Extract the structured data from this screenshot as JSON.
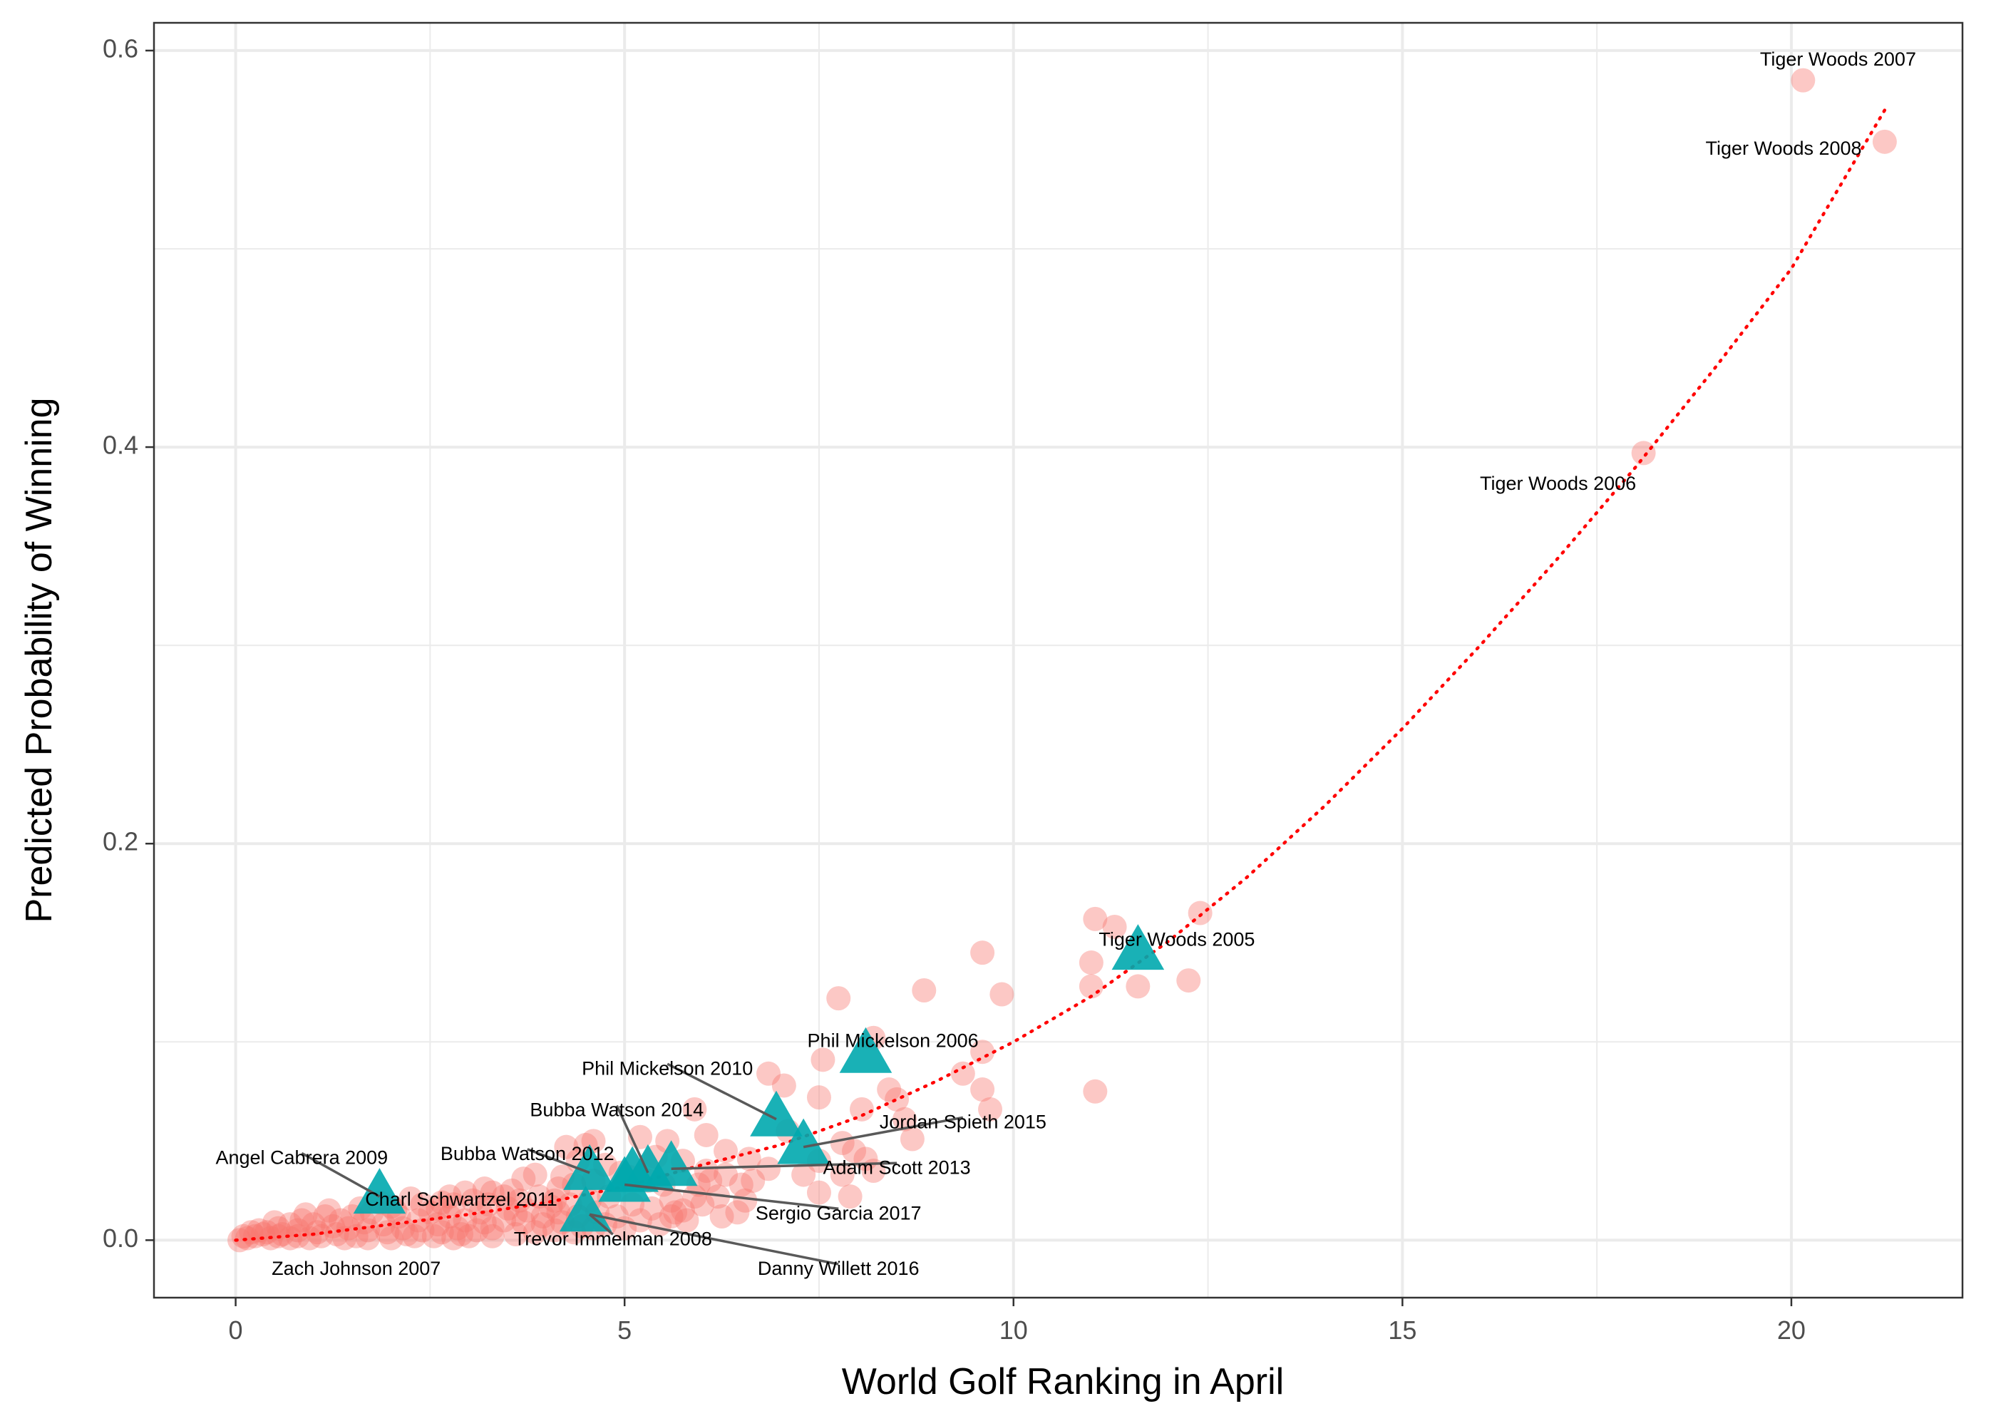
{
  "chart_data": {
    "type": "scatter",
    "title": "",
    "xlabel": "World Golf Ranking in April",
    "ylabel": "Predicted Probability of Winning",
    "xlim": [
      -1.05,
      22.2
    ],
    "ylim": [
      -0.029,
      0.614
    ],
    "x_ticks": [
      0,
      5,
      10,
      15,
      20
    ],
    "y_ticks": [
      0.0,
      0.2,
      0.4,
      0.6
    ],
    "y_tick_labels": [
      "0.0",
      "0.2",
      "0.4",
      "0.6"
    ],
    "grid": true,
    "legend": "none",
    "colors": {
      "field": "#F8766D",
      "winner": "#00A9AE",
      "trend": "#FF0000",
      "connector": "#595959",
      "grid": "#EBEBEB",
      "axis": "#333333"
    },
    "series": [
      {
        "marker": "circle",
        "points": [
          [
            20.15,
            0.585
          ],
          [
            21.2,
            0.554
          ],
          [
            18.1,
            0.397
          ],
          [
            11.05,
            0.162
          ],
          [
            11.3,
            0.158
          ],
          [
            12.4,
            0.165
          ],
          [
            11.0,
            0.14
          ],
          [
            11.0,
            0.128
          ],
          [
            11.6,
            0.128
          ],
          [
            12.25,
            0.131
          ],
          [
            11.05,
            0.075
          ],
          [
            9.6,
            0.145
          ],
          [
            7.75,
            0.122
          ],
          [
            8.85,
            0.126
          ],
          [
            9.85,
            0.124
          ],
          [
            7.55,
            0.091
          ],
          [
            8.2,
            0.102
          ],
          [
            9.6,
            0.095
          ],
          [
            9.35,
            0.084
          ],
          [
            9.6,
            0.076
          ],
          [
            9.7,
            0.066
          ],
          [
            7.05,
            0.078
          ],
          [
            6.85,
            0.084
          ],
          [
            7.5,
            0.072
          ],
          [
            8.05,
            0.066
          ],
          [
            8.4,
            0.076
          ],
          [
            8.5,
            0.071
          ],
          [
            8.6,
            0.061
          ],
          [
            8.7,
            0.051
          ],
          [
            5.9,
            0.066
          ],
          [
            6.05,
            0.053
          ],
          [
            7.1,
            0.055
          ],
          [
            7.8,
            0.049
          ],
          [
            7.95,
            0.045
          ],
          [
            8.1,
            0.041
          ],
          [
            8.2,
            0.035
          ],
          [
            7.5,
            0.04
          ],
          [
            7.8,
            0.033
          ],
          [
            7.3,
            0.033
          ],
          [
            7.9,
            0.022
          ],
          [
            7.5,
            0.024
          ],
          [
            6.85,
            0.036
          ],
          [
            6.6,
            0.041
          ],
          [
            6.3,
            0.045
          ],
          [
            6.05,
            0.035
          ],
          [
            6.5,
            0.028
          ],
          [
            6.55,
            0.02
          ],
          [
            6.45,
            0.014
          ],
          [
            6.2,
            0.022
          ],
          [
            6.3,
            0.033
          ],
          [
            5.95,
            0.028
          ],
          [
            5.75,
            0.04
          ],
          [
            5.55,
            0.05
          ],
          [
            5.2,
            0.052
          ],
          [
            5.4,
            0.042
          ],
          [
            5.6,
            0.02
          ],
          [
            5.75,
            0.015
          ],
          [
            5.9,
            0.022
          ],
          [
            6.1,
            0.03
          ],
          [
            6.65,
            0.03
          ],
          [
            4.6,
            0.05
          ],
          [
            4.5,
            0.048
          ],
          [
            4.25,
            0.047
          ],
          [
            4.4,
            0.04
          ],
          [
            4.75,
            0.038
          ],
          [
            4.95,
            0.034
          ],
          [
            5.05,
            0.032
          ],
          [
            5.3,
            0.03
          ],
          [
            5.5,
            0.028
          ],
          [
            4.6,
            0.03
          ],
          [
            4.35,
            0.028
          ],
          [
            4.15,
            0.026
          ],
          [
            4.2,
            0.032
          ],
          [
            3.85,
            0.033
          ],
          [
            3.7,
            0.031
          ],
          [
            3.55,
            0.025
          ],
          [
            3.3,
            0.024
          ],
          [
            3.2,
            0.026
          ],
          [
            3.45,
            0.022
          ],
          [
            3.65,
            0.02
          ],
          [
            3.9,
            0.022
          ],
          [
            4.1,
            0.02
          ],
          [
            4.3,
            0.018
          ],
          [
            4.55,
            0.02
          ],
          [
            4.8,
            0.022
          ],
          [
            5.1,
            0.018
          ],
          [
            5.35,
            0.016
          ],
          [
            5.6,
            0.012
          ],
          [
            5.8,
            0.01
          ],
          [
            4.9,
            0.012
          ],
          [
            4.65,
            0.014
          ],
          [
            4.4,
            0.012
          ],
          [
            4.15,
            0.014
          ],
          [
            3.95,
            0.012
          ],
          [
            3.75,
            0.015
          ],
          [
            3.5,
            0.016
          ],
          [
            3.25,
            0.018
          ],
          [
            3.05,
            0.02
          ],
          [
            2.95,
            0.024
          ],
          [
            2.75,
            0.022
          ],
          [
            2.8,
            0.018
          ],
          [
            2.6,
            0.016
          ],
          [
            2.4,
            0.018
          ],
          [
            2.25,
            0.021
          ],
          [
            2.5,
            0.014
          ],
          [
            2.75,
            0.012
          ],
          [
            2.95,
            0.01
          ],
          [
            3.2,
            0.009
          ],
          [
            3.45,
            0.01
          ],
          [
            3.7,
            0.009
          ],
          [
            3.95,
            0.008
          ],
          [
            4.2,
            0.009
          ],
          [
            4.45,
            0.007
          ],
          [
            3.3,
            0.006
          ],
          [
            3.1,
            0.005
          ],
          [
            2.85,
            0.006
          ],
          [
            2.6,
            0.008
          ],
          [
            2.35,
            0.01
          ],
          [
            2.1,
            0.012
          ],
          [
            2.0,
            0.017
          ],
          [
            1.85,
            0.019
          ],
          [
            1.6,
            0.016
          ],
          [
            1.5,
            0.012
          ],
          [
            1.65,
            0.009
          ],
          [
            1.9,
            0.008
          ],
          [
            2.15,
            0.006
          ],
          [
            2.4,
            0.005
          ],
          [
            2.65,
            0.004
          ],
          [
            2.9,
            0.003
          ],
          [
            1.35,
            0.01
          ],
          [
            1.15,
            0.012
          ],
          [
            1.0,
            0.008
          ],
          [
            1.25,
            0.007
          ],
          [
            1.45,
            0.006
          ],
          [
            1.7,
            0.005
          ],
          [
            1.95,
            0.004
          ],
          [
            2.2,
            0.003
          ],
          [
            0.85,
            0.01
          ],
          [
            0.7,
            0.008
          ],
          [
            0.8,
            0.005
          ],
          [
            1.05,
            0.004
          ],
          [
            1.3,
            0.003
          ],
          [
            1.55,
            0.002
          ],
          [
            0.55,
            0.006
          ],
          [
            0.4,
            0.004
          ],
          [
            0.6,
            0.003
          ],
          [
            0.3,
            0.005
          ],
          [
            0.25,
            0.002
          ],
          [
            0.45,
            0.001
          ],
          [
            0.7,
            0.001
          ],
          [
            0.95,
            0.001
          ],
          [
            0.15,
            0.001
          ],
          [
            0.05,
            0.0
          ],
          [
            0.1,
            0.002
          ],
          [
            0.35,
            0.003
          ],
          [
            0.55,
            0.002
          ],
          [
            0.8,
            0.002
          ],
          [
            1.1,
            0.002
          ],
          [
            1.4,
            0.001
          ],
          [
            1.7,
            0.001
          ],
          [
            2.0,
            0.001
          ],
          [
            2.3,
            0.002
          ],
          [
            2.55,
            0.002
          ],
          [
            2.8,
            0.001
          ],
          [
            3.0,
            0.002
          ],
          [
            3.3,
            0.002
          ],
          [
            3.6,
            0.003
          ],
          [
            3.85,
            0.004
          ],
          [
            4.1,
            0.005
          ],
          [
            4.35,
            0.004
          ],
          [
            4.6,
            0.006
          ],
          [
            4.75,
            0.008
          ],
          [
            5.0,
            0.006
          ],
          [
            5.2,
            0.01
          ],
          [
            5.45,
            0.008
          ],
          [
            5.65,
            0.014
          ],
          [
            6.0,
            0.018
          ],
          [
            6.25,
            0.012
          ],
          [
            0.2,
            0.004
          ],
          [
            0.5,
            0.009
          ],
          [
            0.9,
            0.013
          ],
          [
            1.2,
            0.015
          ],
          [
            1.75,
            0.014
          ],
          [
            2.05,
            0.015
          ],
          [
            2.65,
            0.019
          ],
          [
            3.15,
            0.014
          ],
          [
            3.6,
            0.013
          ],
          [
            4.05,
            0.017
          ]
        ]
      },
      {
        "marker": "triangle",
        "points": [
          [
            1.85,
            0.022
          ],
          [
            4.5,
            0.013
          ],
          [
            4.55,
            0.034
          ],
          [
            5.0,
            0.028
          ],
          [
            5.1,
            0.033
          ],
          [
            5.3,
            0.034
          ],
          [
            5.6,
            0.036
          ],
          [
            6.95,
            0.061
          ],
          [
            7.3,
            0.047
          ],
          [
            8.1,
            0.093
          ],
          [
            11.6,
            0.145
          ]
        ]
      }
    ],
    "trend": [
      [
        0,
        0.0
      ],
      [
        1,
        0.003
      ],
      [
        2,
        0.008
      ],
      [
        3,
        0.013
      ],
      [
        4,
        0.019
      ],
      [
        5,
        0.027
      ],
      [
        6,
        0.038
      ],
      [
        7,
        0.048
      ],
      [
        8,
        0.062
      ],
      [
        9,
        0.08
      ],
      [
        10,
        0.1
      ],
      [
        11,
        0.123
      ],
      [
        12,
        0.151
      ],
      [
        13,
        0.183
      ],
      [
        14,
        0.219
      ],
      [
        15,
        0.258
      ],
      [
        16,
        0.3
      ],
      [
        17,
        0.344
      ],
      [
        18,
        0.39
      ],
      [
        19,
        0.439
      ],
      [
        20,
        0.49
      ],
      [
        21.2,
        0.57
      ]
    ],
    "annotations": [
      {
        "label": "Tiger Woods 2007",
        "point": [
          20.15,
          0.585
        ],
        "text_at": [
          20.6,
          0.595
        ],
        "anchor": "middle",
        "leader": false
      },
      {
        "label": "Tiger Woods 2008",
        "point": [
          21.2,
          0.554
        ],
        "text_at": [
          19.9,
          0.55
        ],
        "anchor": "middle",
        "leader": false
      },
      {
        "label": "Tiger Woods 2006",
        "point": [
          18.1,
          0.397
        ],
        "text_at": [
          17.0,
          0.381
        ],
        "anchor": "middle",
        "leader": false
      },
      {
        "label": "Tiger Woods 2005",
        "point": [
          11.6,
          0.145
        ],
        "text_at": [
          12.1,
          0.151
        ],
        "anchor": "middle",
        "leader": false
      },
      {
        "label": "Phil Mickelson 2006",
        "point": [
          8.1,
          0.093
        ],
        "text_at": [
          8.45,
          0.1
        ],
        "anchor": "middle",
        "leader": false
      },
      {
        "label": "Phil Mickelson 2010",
        "point": [
          6.95,
          0.061
        ],
        "text_at": [
          5.55,
          0.086
        ],
        "anchor": "middle",
        "leader": true
      },
      {
        "label": "Bubba Watson 2014",
        "point": [
          5.3,
          0.034
        ],
        "text_at": [
          4.9,
          0.065
        ],
        "anchor": "middle",
        "leader": true
      },
      {
        "label": "Jordan Spieth 2015",
        "point": [
          7.3,
          0.047
        ],
        "text_at": [
          9.35,
          0.059
        ],
        "anchor": "middle",
        "leader": true
      },
      {
        "label": "Angel Cabrera 2009",
        "point": [
          1.85,
          0.022
        ],
        "text_at": [
          0.85,
          0.041
        ],
        "anchor": "middle",
        "leader": true
      },
      {
        "label": "Bubba Watson 2012",
        "point": [
          4.55,
          0.034
        ],
        "text_at": [
          3.75,
          0.043
        ],
        "anchor": "middle",
        "leader": true
      },
      {
        "label": "Adam Scott 2013",
        "point": [
          5.6,
          0.036
        ],
        "text_at": [
          8.5,
          0.036
        ],
        "anchor": "middle",
        "leader": true
      },
      {
        "label": "Charl Schwartzel 2011",
        "point": [
          4.5,
          0.013
        ],
        "text_at": [
          2.9,
          0.02
        ],
        "anchor": "middle",
        "leader": false
      },
      {
        "label": "Sergio Garcia 2017",
        "point": [
          5.0,
          0.028
        ],
        "text_at": [
          7.75,
          0.013
        ],
        "anchor": "middle",
        "leader": true
      },
      {
        "label": "Trevor Immelman 2008",
        "point": [
          4.55,
          0.013
        ],
        "text_at": [
          4.85,
          0.0
        ],
        "anchor": "middle",
        "leader": true
      },
      {
        "label": "Zach Johnson 2007",
        "point": [
          0.0,
          0.0
        ],
        "text_at": [
          1.55,
          -0.015
        ],
        "anchor": "middle",
        "leader": false
      },
      {
        "label": "Danny Willett 2016",
        "point": [
          4.55,
          0.013
        ],
        "text_at": [
          7.75,
          -0.015
        ],
        "anchor": "middle",
        "leader": true
      }
    ]
  }
}
